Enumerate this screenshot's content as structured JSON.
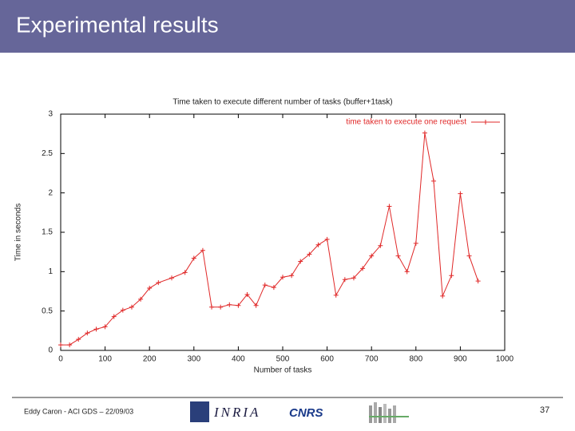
{
  "slide": {
    "title": "Experimental results",
    "footer": "Eddy Caron - ACI GDS – 22/09/03",
    "page": "37",
    "logos": [
      "INRIA",
      "CNRS"
    ]
  },
  "chart_data": {
    "type": "line",
    "title": "Time taken to execute different number of tasks (buffer+1task)",
    "x_label": "Number of tasks",
    "y_label": "Time in seconds",
    "x": [
      0,
      20,
      40,
      60,
      80,
      100,
      120,
      140,
      160,
      180,
      200,
      220,
      250,
      280,
      300,
      320,
      340,
      360,
      380,
      400,
      420,
      440,
      460,
      480,
      500,
      520,
      540,
      560,
      580,
      600,
      620,
      640,
      660,
      680,
      700,
      720,
      740,
      760,
      780,
      800,
      820,
      840,
      860,
      880,
      900,
      920,
      940
    ],
    "series": [
      {
        "name": "time taken to execute one request",
        "color": "#e02828",
        "values": [
          0.07,
          0.07,
          0.14,
          0.22,
          0.27,
          0.3,
          0.43,
          0.51,
          0.55,
          0.65,
          0.79,
          0.86,
          0.92,
          0.99,
          1.17,
          1.27,
          0.55,
          0.55,
          0.58,
          0.57,
          0.71,
          0.57,
          0.83,
          0.8,
          0.93,
          0.95,
          1.13,
          1.22,
          1.34,
          1.41,
          0.7,
          0.9,
          0.92,
          1.04,
          1.2,
          1.33,
          1.83,
          1.2,
          1.0,
          1.36,
          2.76,
          2.15,
          0.69,
          0.95,
          1.99,
          1.2,
          0.88
        ]
      }
    ],
    "xlim": [
      0,
      1000
    ],
    "xticks": [
      0,
      100,
      200,
      300,
      400,
      500,
      600,
      700,
      800,
      900,
      1000
    ],
    "ylim": [
      0,
      3
    ],
    "yticks": [
      0,
      0.5,
      1,
      1.5,
      2,
      2.5,
      3
    ],
    "grid": false,
    "legend": "top-right"
  }
}
